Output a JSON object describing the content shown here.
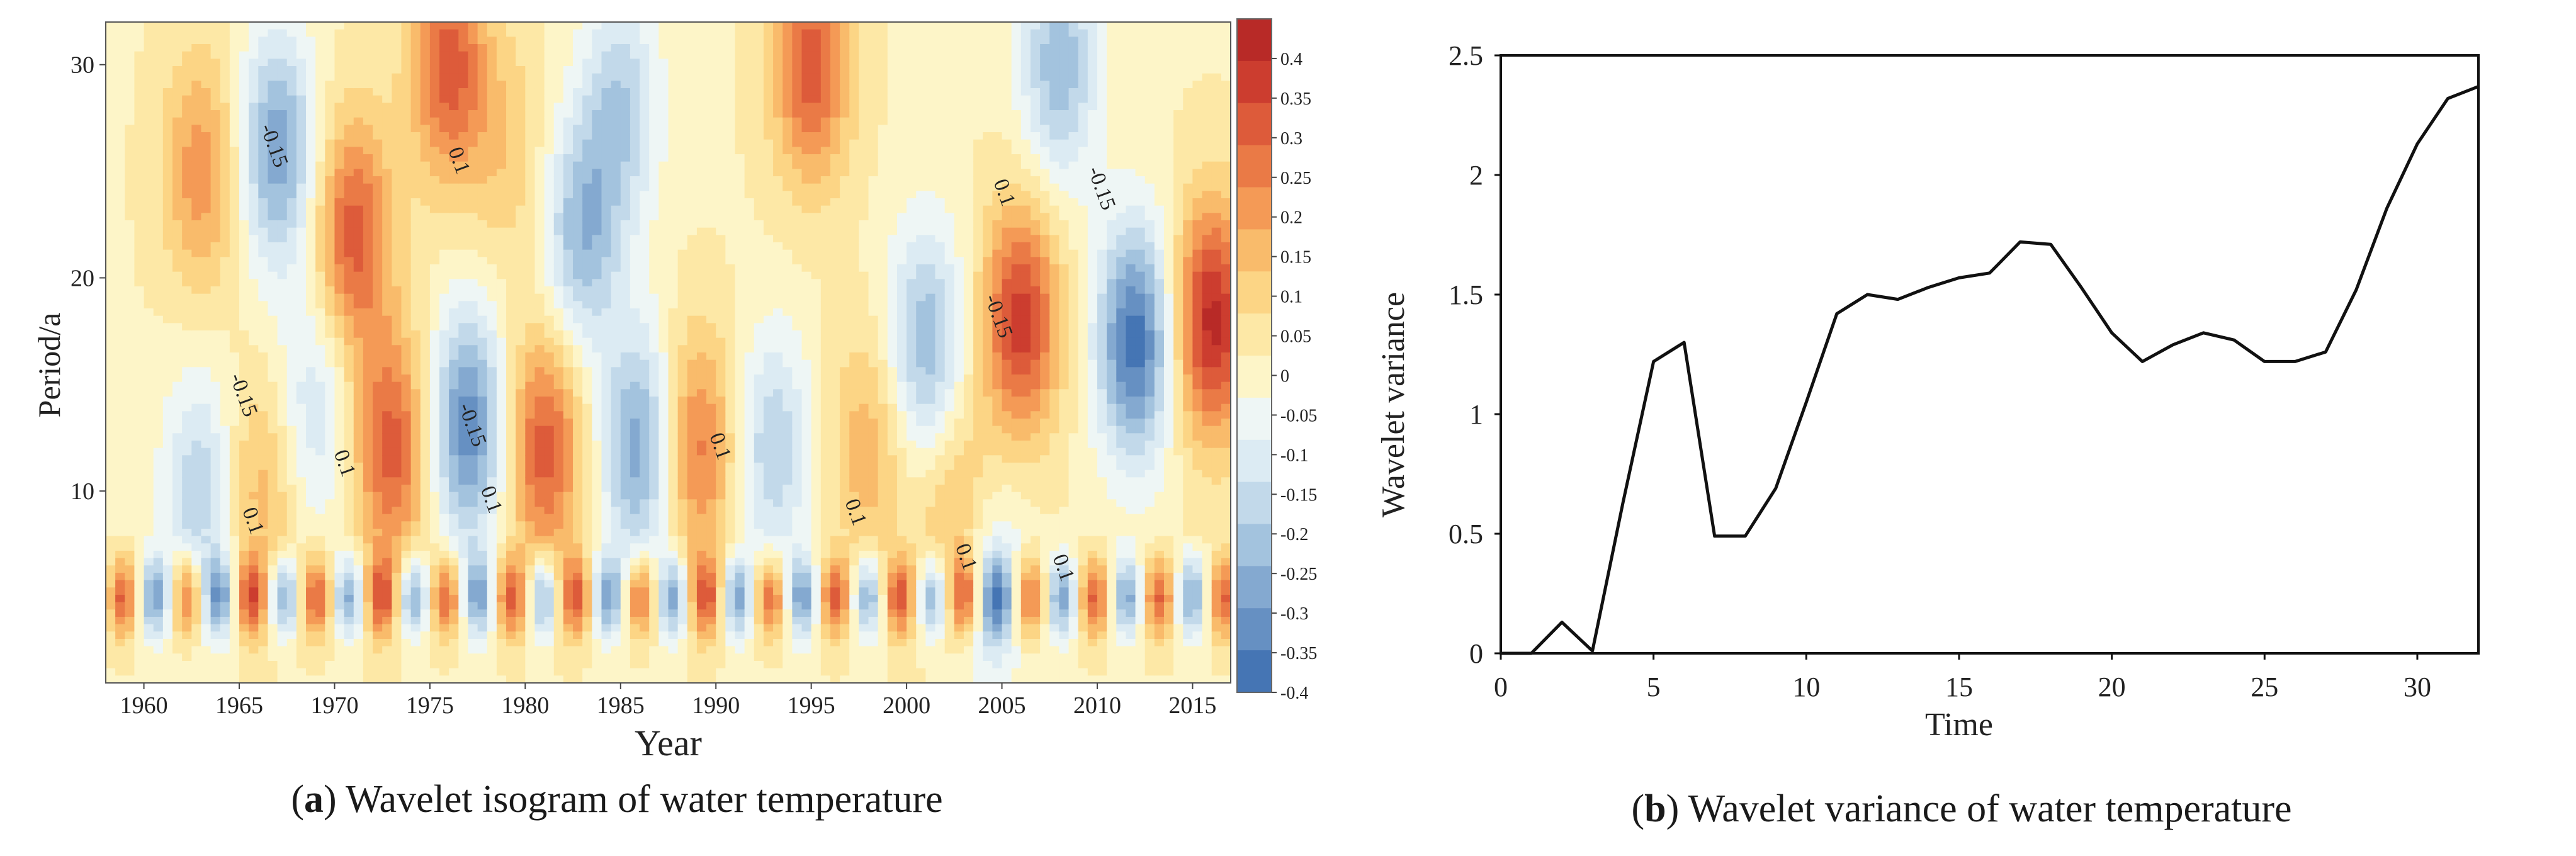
{
  "figure": {
    "panel_a": {
      "caption_letter": "a",
      "caption_text": " Wavelet isogram of water temperature"
    },
    "panel_b": {
      "caption_letter": "b",
      "caption_text": " Wavelet variance of water temperature"
    }
  },
  "chart_data": [
    {
      "type": "heatmap",
      "panel": "a",
      "title": "",
      "xlabel": "Year",
      "ylabel": "Period/a",
      "xlim": [
        1958,
        2017
      ],
      "ylim": [
        1,
        32
      ],
      "x_ticks": [
        1960,
        1965,
        1970,
        1975,
        1980,
        1985,
        1990,
        1995,
        2000,
        2005,
        2010,
        2015
      ],
      "y_ticks": [
        10,
        20,
        30
      ],
      "colorbar": {
        "ticks": [
          "0.4",
          "0.35",
          "0.3",
          "0.25",
          "0.2",
          "0.15",
          "0.1",
          "0.05",
          "0",
          "-0.05",
          "-0.1",
          "-0.15",
          "-0.2",
          "-0.25",
          "-0.3",
          "-0.35",
          "-0.4"
        ],
        "range": [
          -0.4,
          0.45
        ],
        "colors": [
          "#4575b4",
          "#6690c2",
          "#84a9d0",
          "#a3c3de",
          "#c2d9ea",
          "#dcebf3",
          "#eef6f5",
          "#fdf5c8",
          "#fde8a6",
          "#fcd585",
          "#f9bb6b",
          "#f49a56",
          "#ea7a46",
          "#dd5b3a",
          "#cc3d2f",
          "#b82a27"
        ]
      },
      "contour_labels": [
        {
          "text": "-0.15",
          "x": 1966.5,
          "y": 26.1
        },
        {
          "text": "0.1",
          "x": 1976.2,
          "y": 25.4
        },
        {
          "text": "-0.15",
          "x": 1964.9,
          "y": 14.4
        },
        {
          "text": "0.1",
          "x": 1970.2,
          "y": 11.2
        },
        {
          "text": "-0.15",
          "x": 1976.9,
          "y": 13.0
        },
        {
          "text": "0.1",
          "x": 1977.9,
          "y": 9.5
        },
        {
          "text": "0.1",
          "x": 1965.4,
          "y": 8.5
        },
        {
          "text": "0.1",
          "x": 1989.9,
          "y": 12.0
        },
        {
          "text": "0.1",
          "x": 1997.0,
          "y": 8.9
        },
        {
          "text": "-0.15",
          "x": 2004.5,
          "y": 18.1
        },
        {
          "text": "0.1",
          "x": 2004.8,
          "y": 23.9
        },
        {
          "text": "-0.15",
          "x": 2009.9,
          "y": 24.1
        },
        {
          "text": "0.1",
          "x": 2002.8,
          "y": 6.8
        },
        {
          "text": "0.1",
          "x": 2007.9,
          "y": 6.3
        }
      ],
      "field_centers": [
        {
          "x": 1963,
          "y": 25,
          "value": 0.2
        },
        {
          "x": 1967,
          "y": 26,
          "value": -0.3
        },
        {
          "x": 1969,
          "y": 14,
          "value": -0.15
        },
        {
          "x": 1971,
          "y": 22,
          "value": 0.3
        },
        {
          "x": 1973,
          "y": 12,
          "value": 0.3
        },
        {
          "x": 1976,
          "y": 30,
          "value": 0.3
        },
        {
          "x": 1977,
          "y": 13,
          "value": -0.35
        },
        {
          "x": 1979,
          "y": 26,
          "value": 0.1
        },
        {
          "x": 1981,
          "y": 12,
          "value": 0.3
        },
        {
          "x": 1983,
          "y": 22,
          "value": -0.25
        },
        {
          "x": 1985,
          "y": 28,
          "value": -0.2
        },
        {
          "x": 1986,
          "y": 12,
          "value": -0.3
        },
        {
          "x": 1989,
          "y": 12,
          "value": 0.25
        },
        {
          "x": 1993,
          "y": 12,
          "value": -0.2
        },
        {
          "x": 1995,
          "y": 30,
          "value": 0.3
        },
        {
          "x": 1998,
          "y": 12,
          "value": 0.15
        },
        {
          "x": 2001,
          "y": 17,
          "value": -0.25
        },
        {
          "x": 2003,
          "y": 8,
          "value": 0.25
        },
        {
          "x": 2006,
          "y": 18,
          "value": 0.35
        },
        {
          "x": 2008,
          "y": 30,
          "value": -0.25
        },
        {
          "x": 2012,
          "y": 17,
          "value": -0.4
        },
        {
          "x": 2016,
          "y": 18,
          "value": 0.4
        },
        {
          "x": 1966,
          "y": 10,
          "value": 0.15
        },
        {
          "x": 1963,
          "y": 10,
          "value": -0.2
        },
        {
          "x": 2004,
          "y": 6,
          "value": -0.25
        }
      ]
    },
    {
      "type": "line",
      "panel": "b",
      "title": "",
      "xlabel": "Time",
      "ylabel": "Wavelet variance",
      "xlim": [
        0,
        32
      ],
      "ylim": [
        0,
        2.5
      ],
      "x_ticks": [
        0,
        5,
        10,
        15,
        20,
        25,
        30
      ],
      "y_ticks": [
        "0",
        "0.5",
        "1",
        "1.5",
        "2",
        "2.5"
      ],
      "series": [
        {
          "x": [
            0,
            1,
            2,
            3,
            4,
            5,
            6,
            7,
            8,
            9,
            10,
            11,
            12,
            13,
            14,
            15,
            16,
            17,
            18,
            19,
            20,
            21,
            22,
            23,
            24,
            25,
            26,
            27,
            28,
            29,
            30,
            31,
            32
          ],
          "values": [
            0,
            0,
            0.13,
            0.01,
            0.63,
            1.22,
            1.3,
            0.49,
            0.49,
            0.69,
            1.05,
            1.42,
            1.5,
            1.48,
            1.53,
            1.57,
            1.59,
            1.72,
            1.71,
            1.53,
            1.34,
            1.22,
            1.29,
            1.34,
            1.31,
            1.22,
            1.22,
            1.26,
            1.52,
            1.86,
            2.13,
            2.32,
            2.37
          ]
        }
      ]
    }
  ]
}
